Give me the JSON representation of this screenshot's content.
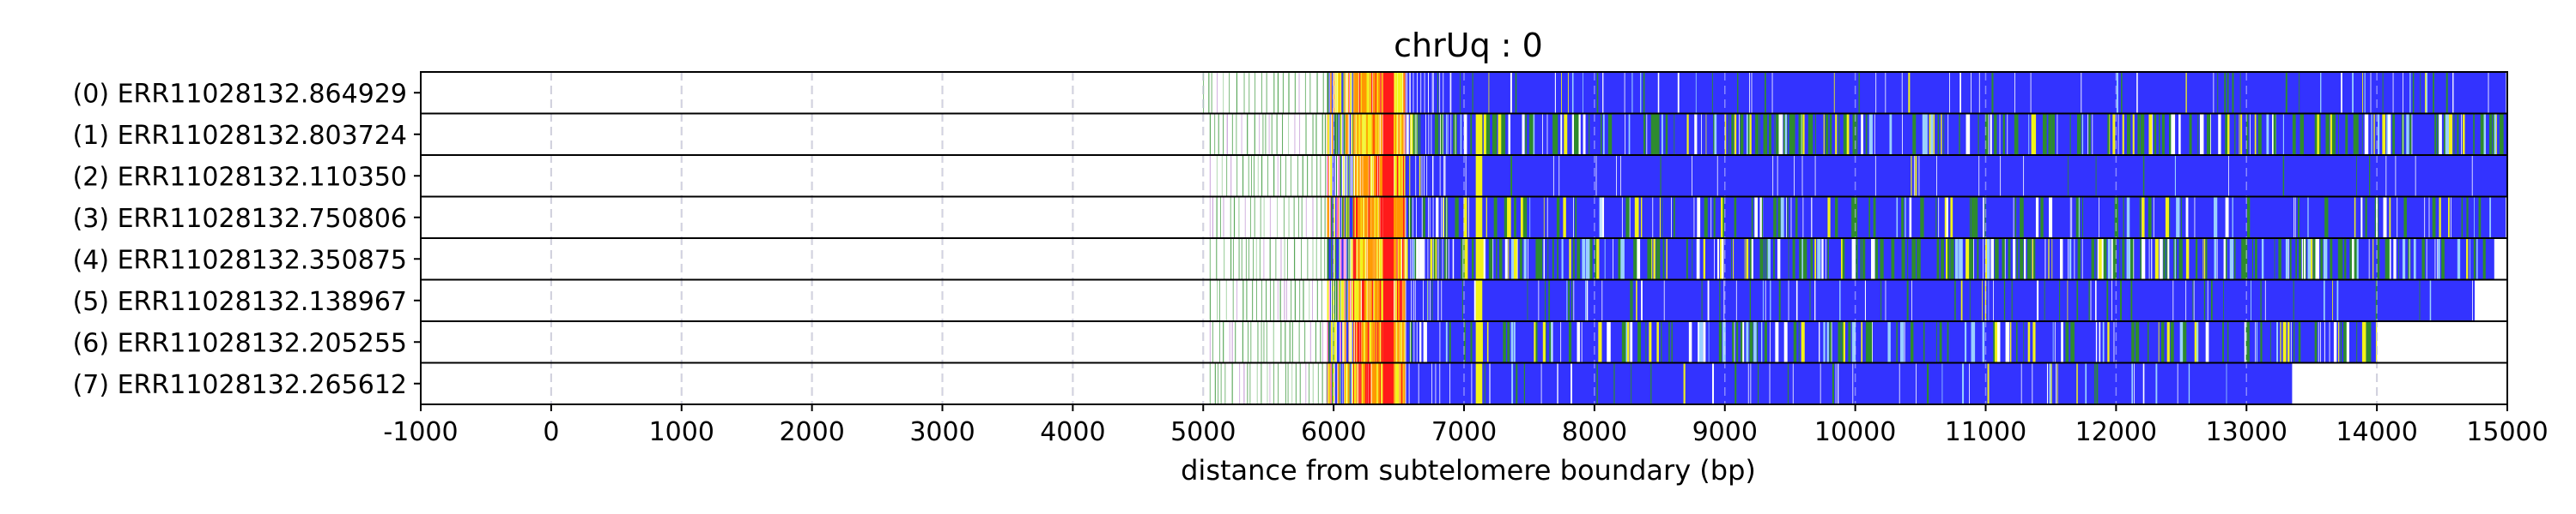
{
  "chart_data": {
    "type": "heatmap",
    "title": "chrUq : 0",
    "xlabel": "distance from subtelomere boundary (bp)",
    "xlim": [
      -1000,
      15000
    ],
    "x_ticks": [
      -1000,
      0,
      1000,
      2000,
      3000,
      4000,
      5000,
      6000,
      7000,
      8000,
      9000,
      10000,
      11000,
      12000,
      13000,
      14000,
      15000
    ],
    "x_tick_labels": [
      "-1000",
      "0",
      "1000",
      "2000",
      "3000",
      "4000",
      "5000",
      "6000",
      "7000",
      "8000",
      "9000",
      "10000",
      "11000",
      "12000",
      "13000",
      "14000",
      "15000"
    ],
    "grid": "vertical dashed",
    "colors": {
      "blue": "#3333ff",
      "green": "#2e8b2e",
      "yellow": "#f2f21a",
      "orange": "#ff9900",
      "red": "#ff1a1a",
      "white": "#ffffff"
    },
    "reads": [
      {
        "label": "(0) ERR11028132.864929",
        "start": 5000,
        "dense_start": 5950,
        "end": 15000,
        "blue_from": 6550,
        "noise": 0.12,
        "yellow_band": false
      },
      {
        "label": "(1) ERR11028132.803724",
        "start": 5050,
        "dense_start": 5950,
        "end": 15000,
        "blue_from": 6550,
        "noise": 0.55,
        "yellow_band": true
      },
      {
        "label": "(2) ERR11028132.110350",
        "start": 5050,
        "dense_start": 5950,
        "end": 15000,
        "blue_from": 6550,
        "noise": 0.04,
        "yellow_band": true
      },
      {
        "label": "(3) ERR11028132.750806",
        "start": 5050,
        "dense_start": 5950,
        "end": 15000,
        "blue_from": 6550,
        "noise": 0.35,
        "yellow_band": true
      },
      {
        "label": "(4) ERR11028132.350875",
        "start": 5050,
        "dense_start": 5950,
        "end": 14900,
        "blue_from": 6550,
        "noise": 0.6,
        "yellow_band": true
      },
      {
        "label": "(5) ERR11028132.138967",
        "start": 5050,
        "dense_start": 5950,
        "end": 14750,
        "blue_from": 6550,
        "noise": 0.15,
        "yellow_band": true
      },
      {
        "label": "(6) ERR11028132.205255",
        "start": 5050,
        "dense_start": 5950,
        "end": 14000,
        "blue_from": 6550,
        "noise": 0.45,
        "yellow_band": true
      },
      {
        "label": "(7) ERR11028132.265612",
        "start": 5050,
        "dense_start": 5950,
        "end": 13350,
        "blue_from": 6550,
        "noise": 0.1,
        "yellow_band": true
      }
    ]
  }
}
